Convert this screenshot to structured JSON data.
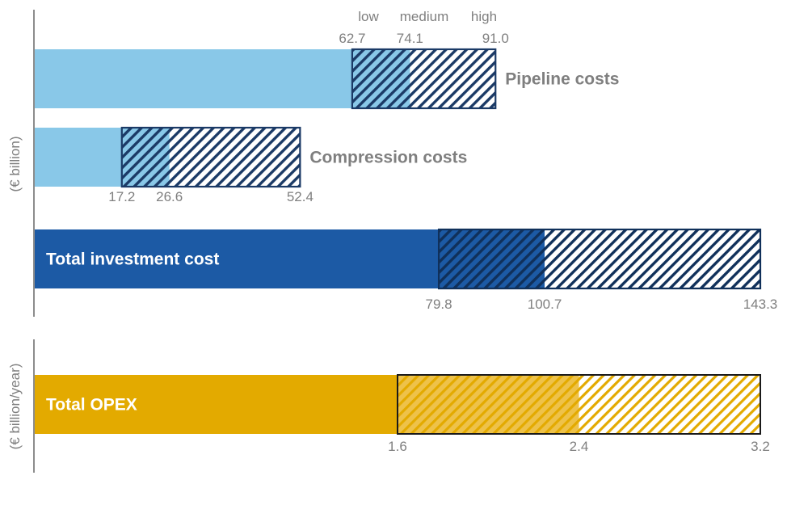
{
  "chart_data": [
    {
      "type": "bar",
      "orientation": "horizontal",
      "stacked_ranges": true,
      "ylabel": "(€ billion)",
      "scenario_labels": [
        "low",
        "medium",
        "high"
      ],
      "colors": {
        "pipeline": "#89c8e8",
        "compression": "#89c8e8",
        "total_investment": "#1c5aa5",
        "outline": "#1b3a66"
      },
      "bars": [
        {
          "name": "Pipeline costs",
          "low": 62.7,
          "medium": 74.1,
          "high": 91.0,
          "label_position": "right",
          "values_position": "above"
        },
        {
          "name": "Compression costs",
          "low": 17.2,
          "medium": 26.6,
          "high": 52.4,
          "label_position": "right",
          "values_position": "below"
        },
        {
          "name": "Total investment cost",
          "low": 79.8,
          "medium": 100.7,
          "high": 143.3,
          "label_position": "inside",
          "values_position": "below"
        }
      ],
      "xlim": [
        0,
        143.3
      ],
      "grid": false,
      "legend": "none"
    },
    {
      "type": "bar",
      "orientation": "horizontal",
      "stacked_ranges": true,
      "ylabel": "(€ billion/year)",
      "colors": {
        "total_opex": "#e3aa00",
        "outline": "#1a1a1a"
      },
      "bars": [
        {
          "name": "Total OPEX",
          "low": 1.6,
          "medium": 2.4,
          "high": 3.2,
          "label_position": "inside",
          "values_position": "below"
        }
      ],
      "xlim": [
        0,
        3.2
      ],
      "grid": false,
      "legend": "none"
    }
  ]
}
